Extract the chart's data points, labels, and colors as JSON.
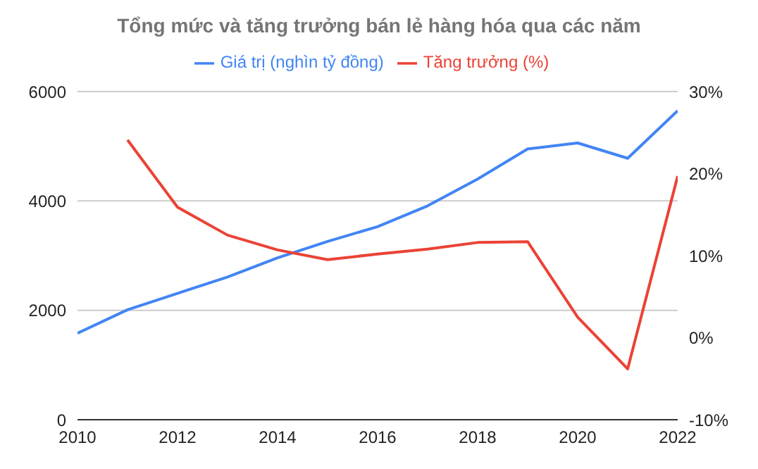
{
  "chart_data": {
    "type": "line",
    "title": "Tổng mức và tăng trưởng bán lẻ hàng hóa qua các năm",
    "x": [
      2010,
      2011,
      2012,
      2013,
      2014,
      2015,
      2016,
      2017,
      2018,
      2019,
      2020,
      2021,
      2022
    ],
    "series": [
      {
        "name": "Giá trị (nghìn tỷ đồng)",
        "color": "#4285f4",
        "values": [
          1580,
          2010,
          2310,
          2610,
          2960,
          3260,
          3530,
          3910,
          4400,
          4950,
          5060,
          4780,
          5650
        ]
      },
      {
        "name": "Tăng trưởng (%)",
        "color": "#ea4335",
        "axis": "y2",
        "values": [
          null,
          24.1,
          15.9,
          12.5,
          10.7,
          9.5,
          10.2,
          10.8,
          11.6,
          11.7,
          2.5,
          -3.8,
          19.7
        ]
      }
    ],
    "xlim": [
      2010,
      2022
    ],
    "xticks": [
      2010,
      2012,
      2014,
      2016,
      2018,
      2020,
      2022
    ],
    "ylim": [
      0,
      6000
    ],
    "yticks": [
      0,
      2000,
      4000,
      6000
    ],
    "y2lim": [
      -10,
      30
    ],
    "y2ticks": [
      {
        "value": -10,
        "label": "-10%"
      },
      {
        "value": 0,
        "label": "0%"
      },
      {
        "value": 10,
        "label": "10%"
      },
      {
        "value": 20,
        "label": "20%"
      },
      {
        "value": 30,
        "label": "30%"
      }
    ],
    "grid": "y",
    "legend": "top",
    "marker": "none",
    "line_style": "solid"
  }
}
